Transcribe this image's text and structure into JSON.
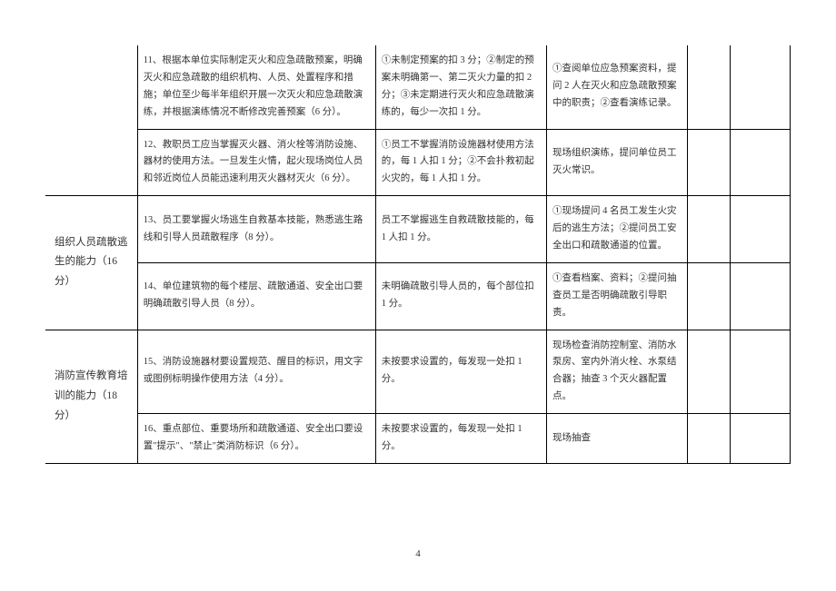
{
  "table": {
    "border_color": "#000000",
    "text_color": "#333333",
    "background_color": "#ffffff",
    "font_size_cell": 10.5,
    "font_size_category": 11.5,
    "line_height": 1.8,
    "rows": [
      {
        "category": "",
        "standard": "11、根据本单位实际制定灭火和应急疏散预案，明确灭火和应急疏散的组织机构、人员、处置程序和措施；单位至少每半年组织开展一次灭火和应急疏散演练，并根据演练情况不断修改完善预案（6 分）。",
        "scoring": "①未制定预案的扣 3 分；②制定的预案未明确第一、第二灭火力量的扣 2 分；③未定期进行灭火和应急疏散演练的，每少一次扣 1 分。",
        "method": "①查阅单位应急预案资料，提问 2 人在灭火和应急疏散预案中的职责；②查看演练记录。",
        "extra1": "",
        "extra2": ""
      },
      {
        "category": "",
        "standard": "12、教职员工应当掌握灭火器、消火栓等消防设施、器材的使用方法。一旦发生火情，起火现场岗位人员和邻近岗位人员能迅速利用灭火器材灭火（6 分）。",
        "scoring": "①员工不掌握消防设施器材使用方法的，每 1 人扣 1 分；②不会扑救初起火灾的，每 1 人扣 1 分。",
        "method": "现场组织演练，提问单位员工灭火常识。",
        "extra1": "",
        "extra2": ""
      },
      {
        "category": "组织人员疏散逃生的能力（16 分）",
        "standard": "13、员工要掌握火场逃生自救基本技能，熟悉逃生路线和引导人员疏散程序（8 分）。",
        "scoring": "员工不掌握逃生自救疏散技能的，每 1 人扣 1 分。",
        "method": "①现场提问 4 名员工发生火灾后的逃生方法；②提问员工安全出口和疏散通道的位置。",
        "extra1": "",
        "extra2": ""
      },
      {
        "category": "",
        "standard": "14、单位建筑物的每个楼层、疏散通道、安全出口要明确疏散引导人员（8 分）。",
        "scoring": "未明确疏散引导人员的，每个部位扣 1 分。",
        "method": "①查看档案、资料；②提问抽查员工是否明确疏散引导职责。",
        "extra1": "",
        "extra2": ""
      },
      {
        "category": "消防宣传教育培训的能力（18 分）",
        "standard": "15、消防设施器材要设置规范、醒目的标识，用文字或图例标明操作使用方法（4 分）。",
        "scoring": "未按要求设置的，每发现一处扣 1 分。",
        "method": "现场检查消防控制室、消防水泵房、室内外消火栓、水泵结合器；抽查 3 个灭火器配置点。",
        "extra1": "",
        "extra2": ""
      },
      {
        "category": "",
        "standard": "16、重点部位、重要场所和疏散通道、安全出口要设置\"提示\"、\"禁止\"类消防标识（6 分）。",
        "scoring": "未按要求设置的，每发现一处扣 1 分。",
        "method": "现场抽查",
        "extra1": "",
        "extra2": ""
      }
    ]
  },
  "page_number": "4"
}
